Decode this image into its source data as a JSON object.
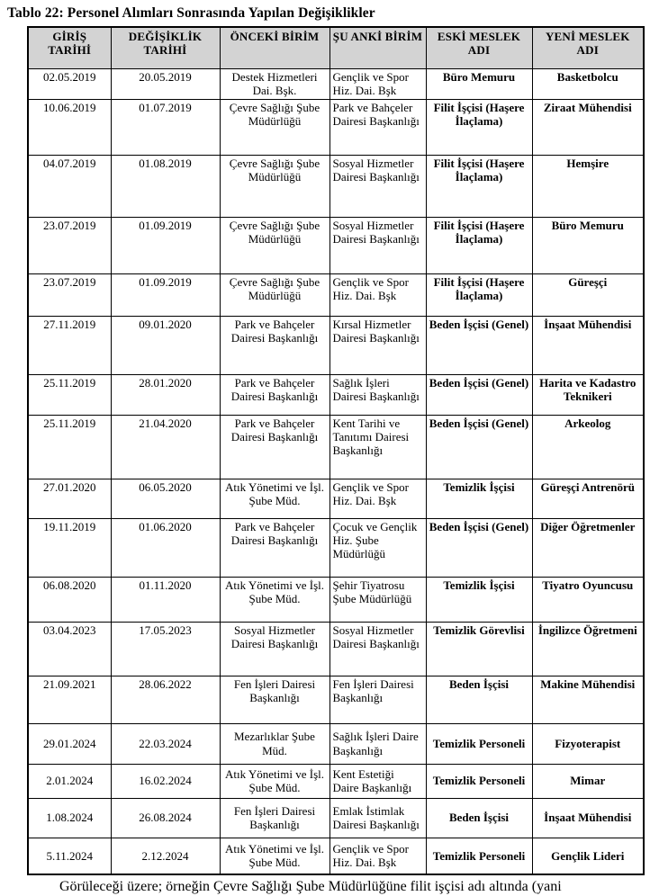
{
  "title": "Tablo 22: Personel Alımları Sonrasında Yapılan Değişiklikler",
  "table": {
    "headers": [
      "GİRİŞ TARİHİ",
      "DEĞİŞİKLİK TARİHİ",
      "ÖNCEKİ BİRİM",
      "ŞU ANKİ BİRİM",
      "ESKİ MESLEK ADI",
      "YENİ MESLEK ADI"
    ],
    "rows": [
      {
        "giris": "02.05.2019",
        "degisiklik": "20.05.2019",
        "onceki": "Destek Hizmetleri Dai. Bşk.",
        "suanki": "Gençlik ve Spor Hiz. Dai. Bşk",
        "eski": "Büro Memuru",
        "yeni": "Basketbolcu"
      },
      {
        "giris": "10.06.2019",
        "degisiklik": "01.07.2019",
        "onceki": "Çevre Sağlığı Şube Müdürlüğü",
        "suanki": "Park ve Bahçeler Dairesi Başkanlığı",
        "eski": "Filit İşçisi (Haşere İlaçlama)",
        "yeni": "Ziraat Mühendisi"
      },
      {
        "giris": "04.07.2019",
        "degisiklik": "01.08.2019",
        "onceki": "Çevre Sağlığı Şube Müdürlüğü",
        "suanki": "Sosyal Hizmetler Dairesi Başkanlığı",
        "eski": "Filit İşçisi (Haşere İlaçlama)",
        "yeni": "Hemşire"
      },
      {
        "giris": "23.07.2019",
        "degisiklik": "01.09.2019",
        "onceki": "Çevre Sağlığı Şube Müdürlüğü",
        "suanki": "Sosyal Hizmetler Dairesi Başkanlığı",
        "eski": "Filit İşçisi (Haşere İlaçlama)",
        "yeni": "Büro Memuru"
      },
      {
        "giris": "23.07.2019",
        "degisiklik": "01.09.2019",
        "onceki": "Çevre Sağlığı Şube Müdürlüğü",
        "suanki": "Gençlik ve Spor Hiz. Dai. Bşk",
        "eski": "Filit İşçisi (Haşere İlaçlama)",
        "yeni": "Güreşçi"
      },
      {
        "giris": "27.11.2019",
        "degisiklik": "09.01.2020",
        "onceki": "Park ve Bahçeler Dairesi Başkanlığı",
        "suanki": "Kırsal Hizmetler Dairesi Başkanlığı",
        "eski": "Beden İşçisi (Genel)",
        "yeni": "İnşaat Mühendisi"
      },
      {
        "giris": "25.11.2019",
        "degisiklik": "28.01.2020",
        "onceki": "Park ve Bahçeler Dairesi Başkanlığı",
        "suanki": "Sağlık İşleri Dairesi Başkanlığı",
        "eski": "Beden İşçisi (Genel)",
        "yeni": "Harita ve Kadastro Teknikeri"
      },
      {
        "giris": "25.11.2019",
        "degisiklik": "21.04.2020",
        "onceki": "Park ve Bahçeler Dairesi Başkanlığı",
        "suanki": "Kent Tarihi ve Tanıtımı Dairesi Başkanlığı",
        "eski": "Beden İşçisi (Genel)",
        "yeni": "Arkeolog"
      },
      {
        "giris": "27.01.2020",
        "degisiklik": "06.05.2020",
        "onceki": "Atık Yönetimi ve İşl. Şube Müd.",
        "suanki": "Gençlik ve Spor Hiz. Dai. Bşk",
        "eski": "Temizlik İşçisi",
        "yeni": "Güreşçi Antrenörü"
      },
      {
        "giris": "19.11.2019",
        "degisiklik": "01.06.2020",
        "onceki": "Park ve Bahçeler Dairesi Başkanlığı",
        "suanki": "Çocuk ve Gençlik Hiz. Şube Müdürlüğü",
        "eski": "Beden İşçisi (Genel)",
        "yeni": "Diğer Öğretmenler"
      },
      {
        "giris": "06.08.2020",
        "degisiklik": "01.11.2020",
        "onceki": "Atık Yönetimi ve İşl. Şube Müd.",
        "suanki": "Şehir Tiyatrosu Şube Müdürlüğü",
        "eski": "Temizlik İşçisi",
        "yeni": "Tiyatro Oyuncusu"
      },
      {
        "giris": "03.04.2023",
        "degisiklik": "17.05.2023",
        "onceki": "Sosyal Hizmetler Dairesi Başkanlığı",
        "suanki": "Sosyal Hizmetler Dairesi Başkanlığı",
        "eski": "Temizlik Görevlisi",
        "yeni": "İngilizce Öğretmeni"
      },
      {
        "giris": "21.09.2021",
        "degisiklik": "28.06.2022",
        "onceki": "Fen İşleri Dairesi Başkanlığı",
        "suanki": "Fen İşleri Dairesi Başkanlığı",
        "eski": "Beden İşçisi",
        "yeni": "Makine Mühendisi"
      },
      {
        "giris": "29.01.2024",
        "degisiklik": "22.03.2024",
        "onceki": "Mezarlıklar Şube Müd.",
        "suanki": "Sağlık İşleri Daire Başkanlığı",
        "eski": "Temizlik Personeli",
        "yeni": "Fizyoterapist"
      },
      {
        "giris": "2.01.2024",
        "degisiklik": "16.02.2024",
        "onceki": "Atık Yönetimi ve İşl. Şube Müd.",
        "suanki": "Kent Estetiği Daire Başkanlığı",
        "eski": "Temizlik Personeli",
        "yeni": "Mimar"
      },
      {
        "giris": "1.08.2024",
        "degisiklik": "26.08.2024",
        "onceki": "Fen İşleri Dairesi Başkanlığı",
        "suanki": "Emlak İstimlak Dairesi Başkanlığı",
        "eski": "Beden İşçisi",
        "yeni": "İnşaat Mühendisi"
      },
      {
        "giris": "5.11.2024",
        "degisiklik": "2.12.2024",
        "onceki": "Atık Yönetimi ve İşl. Şube Müd.",
        "suanki": "Gençlik ve Spor Hiz. Dai. Bşk",
        "eski": "Temizlik Personeli",
        "yeni": "Gençlik Lideri"
      }
    ]
  },
  "closing_text": "Görüleceği üzere; örneğin Çevre Sağlığı Şube Müdürlüğüne filit işçisi adı altında (yani",
  "colors": {
    "header_bg": "#d3d3d3",
    "border": "#000000",
    "text": "#000000",
    "page_bg": "#ffffff"
  }
}
